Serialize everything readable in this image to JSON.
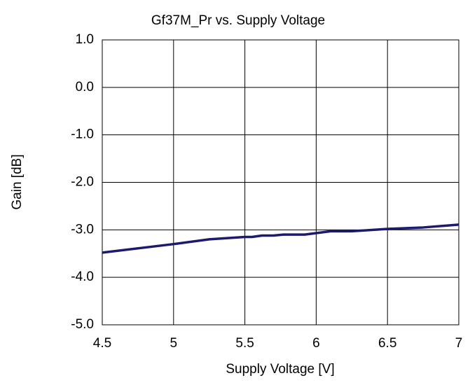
{
  "chart_data": {
    "type": "line",
    "title": "Gf37M_Pr vs. Supply Voltage",
    "x_label": "Supply Voltage [V]",
    "y_label": "Gain [dB]",
    "x": [
      4.5,
      5.0,
      5.25,
      5.5,
      5.55,
      5.62,
      5.7,
      5.77,
      5.92,
      6.1,
      6.25,
      6.5,
      6.75,
      7.0
    ],
    "series": [
      {
        "color": "#1a1a6e",
        "values": [
          -3.48,
          -3.3,
          -3.2,
          -3.15,
          -3.15,
          -3.12,
          -3.12,
          -3.1,
          -3.1,
          -3.03,
          -3.03,
          -2.98,
          -2.95,
          -2.89
        ]
      }
    ],
    "xlim": [
      4.5,
      7
    ],
    "xticks": [
      4.5,
      5,
      5.5,
      6,
      6.5,
      7
    ],
    "ylim": [
      -5,
      1
    ],
    "yticks": [
      {
        "value": -5,
        "label": "-5.0"
      },
      {
        "value": -4,
        "label": "-4.0"
      },
      {
        "value": -3,
        "label": "-3.0"
      },
      {
        "value": -2,
        "label": "-2.0"
      },
      {
        "value": -1,
        "label": "-1.0"
      },
      {
        "value": 0,
        "label": "0.0"
      },
      {
        "value": 1,
        "label": "1.0"
      }
    ],
    "grid": true
  }
}
